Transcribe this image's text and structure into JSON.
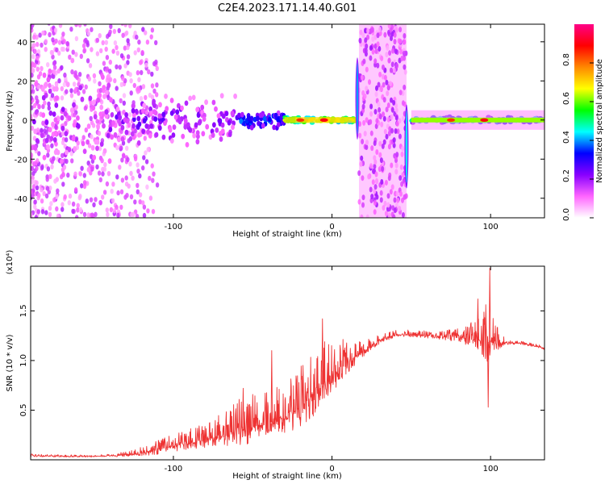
{
  "title": "C2E4.2023.171.14.40.G01",
  "colors": {
    "snr_line": "#ee3333",
    "colormap": [
      "#ffffff",
      "#ff66ff",
      "#8800ff",
      "#0000ff",
      "#00ffff",
      "#00ff00",
      "#ffff00",
      "#ff8800",
      "#ff0000",
      "#ff0088"
    ]
  },
  "chart_data": [
    {
      "type": "heatmap",
      "name": "spectrogram",
      "xlabel": "Height of straight line (km)",
      "ylabel": "Frequency (Hz)",
      "xlim": [
        -190,
        134
      ],
      "ylim": [
        -50,
        49
      ],
      "xticks": [
        -100,
        0,
        100
      ],
      "yticks": [
        -40,
        -20,
        0,
        20,
        40
      ],
      "colorbar": {
        "label": "Normalized spectral amplitude",
        "range": [
          0.0,
          1.0
        ],
        "ticks": [
          0.0,
          0.2,
          0.4,
          0.6,
          0.8
        ],
        "tick_labels": [
          "0.0",
          "0.2",
          "0.4",
          "0.6",
          "0.8"
        ]
      },
      "bands": [
        {
          "x_range": [
            17,
            47
          ],
          "frequency_range": [
            -50,
            49
          ],
          "description": "broadband noise column"
        }
      ],
      "spikes": [
        {
          "x": 16,
          "frequency_range": [
            -10,
            32
          ],
          "level": 0.4
        },
        {
          "x": 47,
          "frequency_range": [
            -35,
            8
          ],
          "level": 0.45
        }
      ],
      "ridge": {
        "center_frequency_hz": 0,
        "segments": [
          {
            "x_from": -190,
            "x_to": -140,
            "spread_hz": 35,
            "level": 0.15
          },
          {
            "x_from": -140,
            "x_to": -60,
            "spread_hz": 15,
            "level": 0.2
          },
          {
            "x_from": -60,
            "x_to": -30,
            "spread_hz": 6,
            "level": 0.35
          },
          {
            "x_from": -30,
            "x_to": 15,
            "spread_hz": 2.5,
            "level": 0.7
          },
          {
            "x_from": 50,
            "x_to": 134,
            "spread_hz": 2,
            "level": 0.55
          }
        ],
        "peaks": [
          {
            "x": -20,
            "level": 0.85
          },
          {
            "x": -5,
            "level": 0.9
          },
          {
            "x": 75,
            "level": 0.85
          },
          {
            "x": 96,
            "level": 0.9
          }
        ]
      }
    },
    {
      "type": "line",
      "name": "snr",
      "xlabel": "Height of straight line (km)",
      "ylabel": "SNR (10 * v/v)",
      "scale_label": "(x10⁴)",
      "xlim": [
        -190,
        134
      ],
      "ylim": [
        0.0,
        1.95
      ],
      "xticks": [
        -100,
        0,
        100
      ],
      "yticks": [
        0.5,
        1.0,
        1.5
      ],
      "ytick_labels": [
        "0.5",
        "1.0",
        "1.5"
      ],
      "series": [
        {
          "name": "SNR",
          "x": [
            -190,
            -180,
            -170,
            -160,
            -150,
            -140,
            -130,
            -120,
            -110,
            -100,
            -90,
            -80,
            -70,
            -60,
            -50,
            -40,
            -30,
            -20,
            -10,
            0,
            10,
            20,
            30,
            40,
            50,
            60,
            70,
            80,
            90,
            95,
            100,
            105,
            110,
            120,
            130,
            134
          ],
          "baseline": [
            0.04,
            0.04,
            0.035,
            0.035,
            0.035,
            0.04,
            0.05,
            0.07,
            0.1,
            0.14,
            0.17,
            0.2,
            0.24,
            0.3,
            0.33,
            0.37,
            0.42,
            0.52,
            0.7,
            0.85,
            0.98,
            1.1,
            1.2,
            1.26,
            1.26,
            1.25,
            1.24,
            1.23,
            1.22,
            1.2,
            1.18,
            1.17,
            1.18,
            1.17,
            1.14,
            1.12
          ],
          "noise": [
            0.02,
            0.015,
            0.012,
            0.012,
            0.012,
            0.015,
            0.03,
            0.05,
            0.08,
            0.1,
            0.12,
            0.14,
            0.2,
            0.25,
            0.28,
            0.28,
            0.3,
            0.35,
            0.4,
            0.3,
            0.2,
            0.1,
            0.05,
            0.04,
            0.04,
            0.04,
            0.05,
            0.08,
            0.15,
            0.25,
            0.4,
            0.1,
            0.03,
            0.02,
            0.02,
            0.02
          ],
          "peaks": [
            {
              "x": 99.5,
              "y": 1.93
            },
            {
              "x": 98.5,
              "y": 0.53
            },
            {
              "x": 92,
              "y": 1.62
            },
            {
              "x": -6,
              "y": 1.42
            },
            {
              "x": -38,
              "y": 1.1
            },
            {
              "x": -56,
              "y": 0.72
            }
          ]
        }
      ]
    }
  ]
}
